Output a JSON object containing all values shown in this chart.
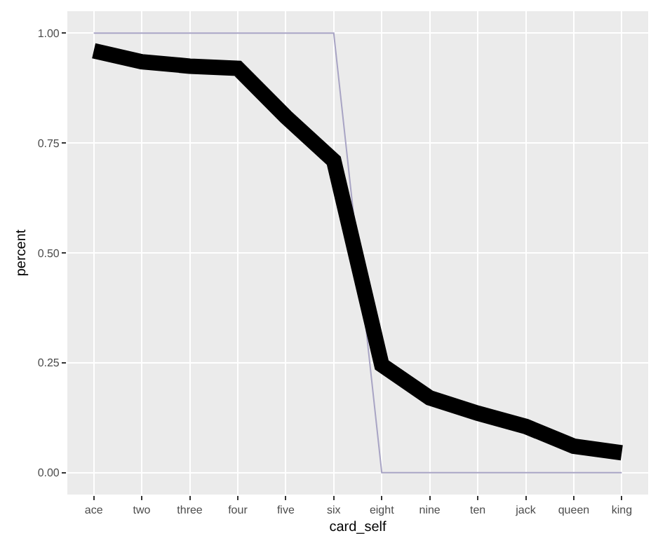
{
  "chart_data": {
    "type": "line",
    "xlabel": "card_self",
    "ylabel": "percent",
    "categories": [
      "ace",
      "two",
      "three",
      "four",
      "five",
      "six",
      "eight",
      "nine",
      "ten",
      "jack",
      "queen",
      "king"
    ],
    "ylim": [
      -0.05,
      1.05
    ],
    "yticks": [
      {
        "value": 0,
        "label": "0.00"
      },
      {
        "value": 0.25,
        "label": "0.25"
      },
      {
        "value": 0.5,
        "label": "0.50"
      },
      {
        "value": 0.75,
        "label": "0.75"
      },
      {
        "value": 1,
        "label": "1.00"
      }
    ],
    "grid": true,
    "marker": "none",
    "line_style": "solid",
    "series": [
      {
        "color": "#a8a4c4",
        "values": [
          1,
          1,
          1,
          1,
          1,
          1,
          0,
          0,
          0,
          0,
          0,
          0
        ]
      },
      {
        "color": "#000000",
        "values": [
          0.96,
          0.935,
          0.925,
          0.92,
          0.81,
          0.71,
          0.245,
          0.17,
          0.135,
          0.105,
          0.06,
          0.045
        ]
      }
    ]
  }
}
